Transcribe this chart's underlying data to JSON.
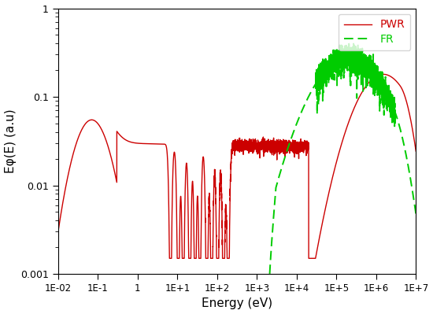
{
  "title": "",
  "xlabel": "Energy (eV)",
  "ylabel": "Eφ(E) (a.u)",
  "xlim": [
    0.01,
    10000000.0
  ],
  "ylim": [
    0.001,
    1.0
  ],
  "pwr_color": "#cc0000",
  "fr_color": "#00cc00",
  "legend_pwr": "PWR",
  "legend_fr": "FR",
  "background_color": "#ffffff",
  "xticks": [
    0.01,
    0.1,
    1,
    10,
    100,
    1000,
    10000,
    100000,
    1000000,
    10000000
  ],
  "xlabels": [
    "1E-02",
    "1E-1",
    "1",
    "1E+1",
    "1E+2",
    "1E+3",
    "1E+4",
    "1E+5",
    "1E+6",
    "1E+7"
  ],
  "yticks": [
    0.001,
    0.01,
    0.1,
    1
  ],
  "ylabels": [
    "0.001",
    "0.01",
    "0.1",
    "1"
  ]
}
